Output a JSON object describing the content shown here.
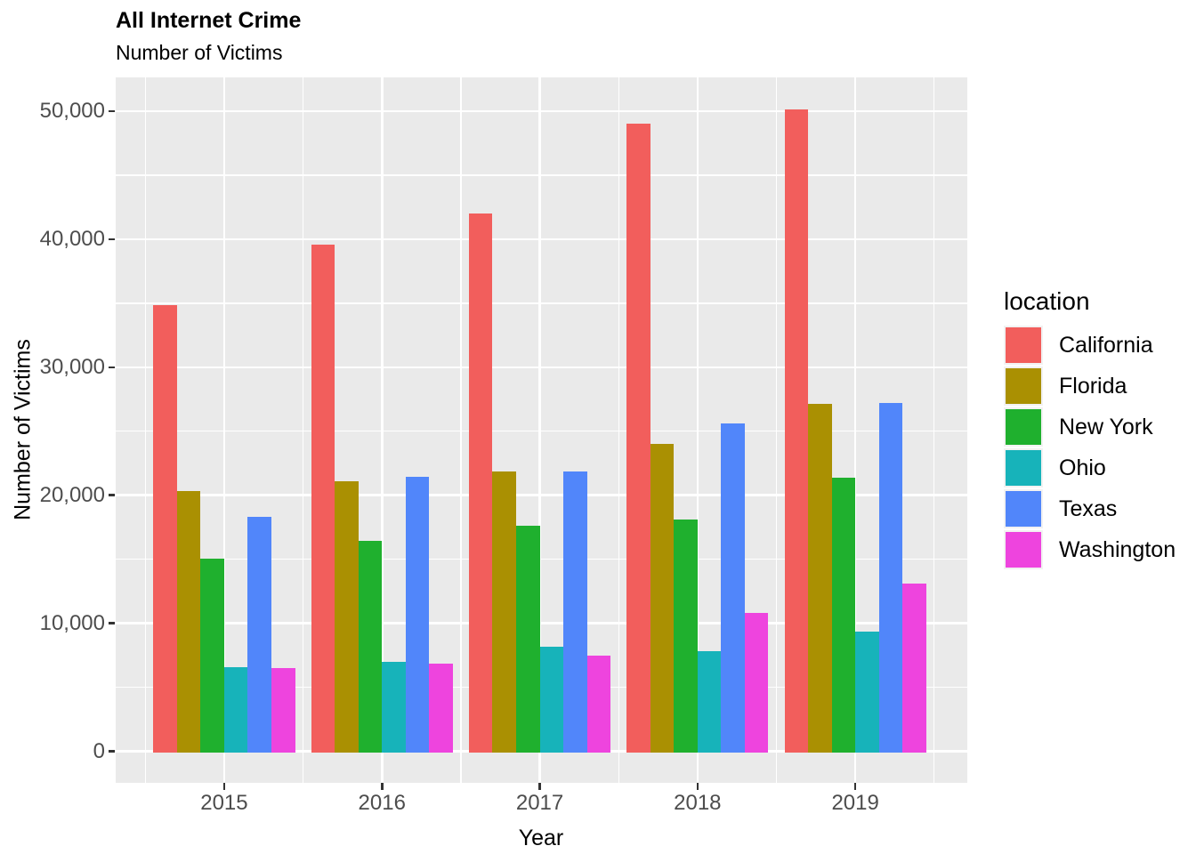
{
  "header": {
    "title": "All Internet Crime",
    "subtitle": "Number of Victims"
  },
  "chart_data": {
    "type": "bar",
    "title": "All Internet Crime",
    "subtitle": "Number of Victims",
    "xlabel": "Year",
    "ylabel": "Number of Victims",
    "categories": [
      "2015",
      "2016",
      "2017",
      "2018",
      "2019"
    ],
    "series": [
      {
        "name": "California",
        "color": "#F25E5C",
        "values": [
          34841,
          39547,
          41974,
          49031,
          50132
        ]
      },
      {
        "name": "Florida",
        "color": "#AA9002",
        "values": [
          20306,
          21068,
          21887,
          23984,
          27157
        ]
      },
      {
        "name": "New York",
        "color": "#1FB02E",
        "values": [
          15052,
          16426,
          17622,
          18124,
          21371
        ]
      },
      {
        "name": "Ohio",
        "color": "#17B3BA",
        "values": [
          6559,
          6999,
          8157,
          7812,
          9375
        ]
      },
      {
        "name": "Texas",
        "color": "#5186FA",
        "values": [
          18316,
          21441,
          21852,
          25589,
          27178
        ]
      },
      {
        "name": "Washington",
        "color": "#EE44DE",
        "values": [
          6517,
          6867,
          7466,
          10775,
          13095
        ]
      }
    ],
    "ylim": [
      0,
      52000
    ],
    "yticks": [
      0,
      10000,
      20000,
      30000,
      40000,
      50000
    ],
    "ytick_labels": [
      "0",
      "10,000",
      "20,000",
      "30,000",
      "40,000",
      "50,000"
    ],
    "legend_title": "location",
    "legend_position": "right",
    "grid": "major-and-minor",
    "panel_bg": "#EAEAEA",
    "grid_color": "#FFFFFF",
    "tick_label_color": "#4D4D4D"
  }
}
